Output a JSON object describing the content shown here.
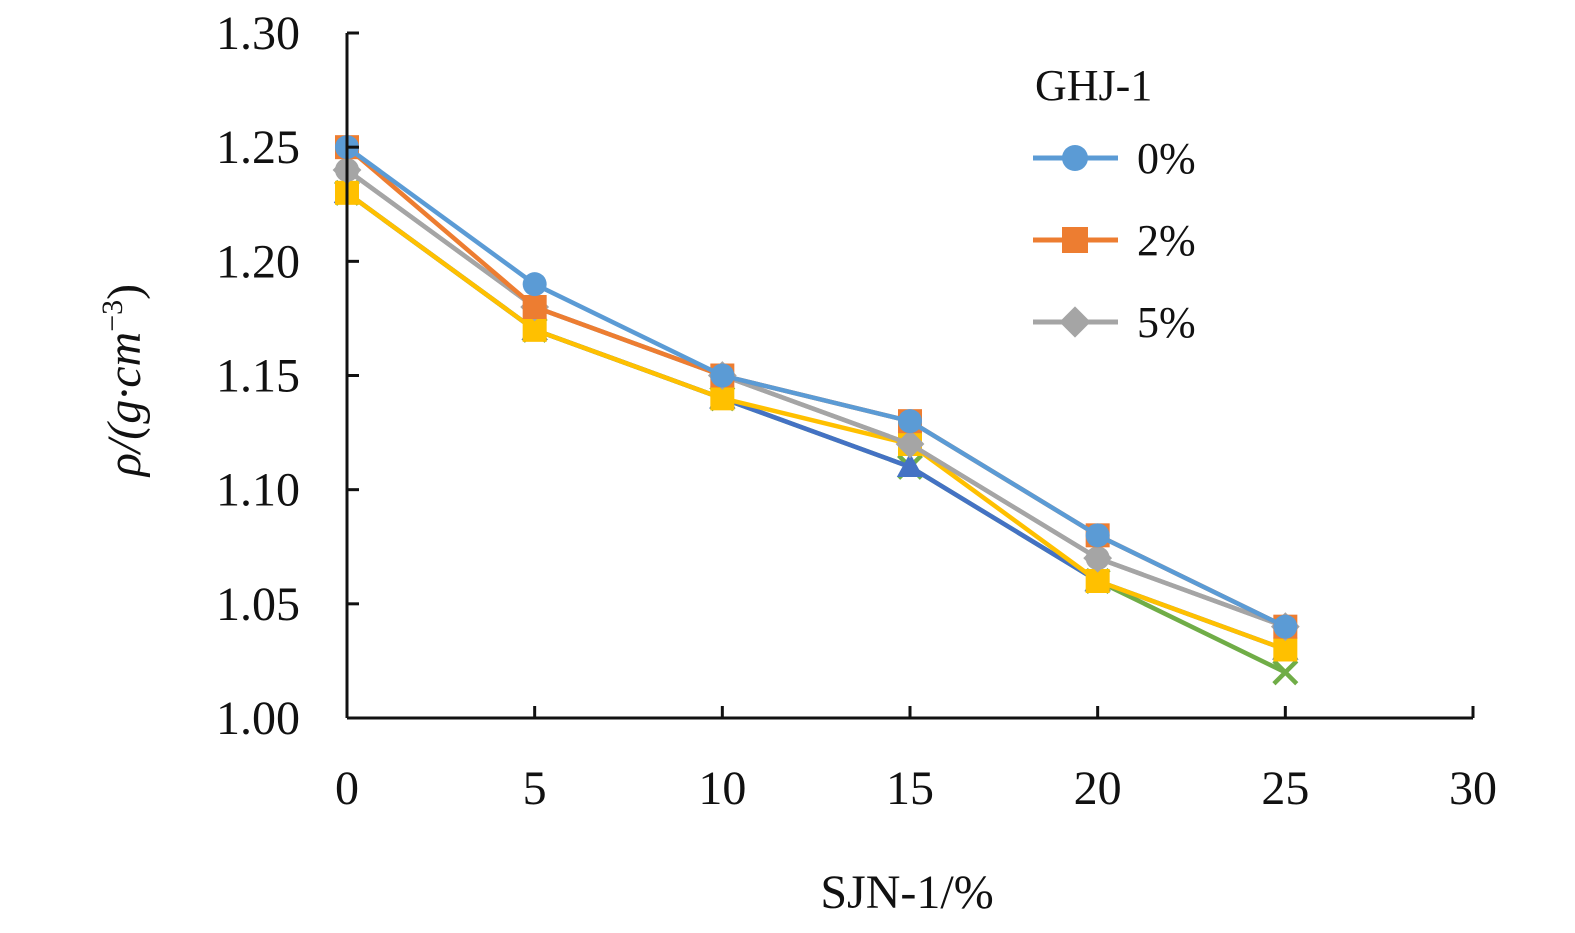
{
  "chart_data": {
    "type": "line",
    "xlabel": "SJN-1/%",
    "ylabel_main": "ρ/(g·cm",
    "ylabel_sup": "−3",
    "ylabel_close": ")",
    "xlim": [
      0,
      30
    ],
    "ylim": [
      1.0,
      1.3
    ],
    "xticks": [
      0,
      5,
      10,
      15,
      20,
      25,
      30
    ],
    "xtick_labels": [
      "0",
      "5",
      "10",
      "15",
      "20",
      "25",
      "30"
    ],
    "yticks": [
      1.0,
      1.05,
      1.1,
      1.15,
      1.2,
      1.25,
      1.3
    ],
    "ytick_labels": [
      "1.00",
      "1.05",
      "1.10",
      "1.15",
      "1.20",
      "1.25",
      "1.30"
    ],
    "grid": false,
    "legend_title": "GHJ-1",
    "legend_position": "top-right",
    "x": [
      0,
      5,
      10,
      15,
      20,
      25
    ],
    "series": [
      {
        "name": "",
        "color": "#5B9BD5",
        "marker": "circle",
        "values": [
          1.25,
          1.19,
          1.15,
          1.13,
          1.08,
          1.04
        ]
      },
      {
        "name": "",
        "color": "#ED7D31",
        "marker": "square",
        "values": [
          1.25,
          1.18,
          1.15,
          1.13,
          1.08,
          1.04
        ]
      },
      {
        "name": "",
        "color": "#A5A5A5",
        "marker": "diamond",
        "values": [
          1.24,
          1.18,
          1.15,
          1.12,
          1.07,
          1.04
        ]
      },
      {
        "name": "",
        "color": "#FFC000",
        "marker": "square",
        "values": [
          1.23,
          1.17,
          1.14,
          1.12,
          1.06,
          1.03
        ]
      },
      {
        "name": "",
        "color": "#4472C4",
        "marker": "triangle",
        "values": [
          1.23,
          1.17,
          1.14,
          1.11,
          1.06,
          1.03
        ]
      },
      {
        "name": "",
        "color": "#70AD47",
        "marker": "x",
        "values": [
          1.23,
          1.17,
          1.14,
          1.11,
          1.06,
          1.02
        ]
      },
      {
        "name": "",
        "color": "#A5A5A5",
        "marker": "circle",
        "values": [
          1.24,
          1.18,
          1.15,
          1.12,
          1.07,
          1.04
        ]
      }
    ],
    "legend": [
      {
        "label": "0%",
        "color": "#5B9BD5",
        "marker": "circle"
      },
      {
        "label": "2%",
        "color": "#ED7D31",
        "marker": "square"
      },
      {
        "label": "5%",
        "color": "#A5A5A5",
        "marker": "diamond"
      }
    ]
  }
}
